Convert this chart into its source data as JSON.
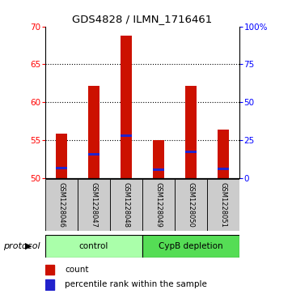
{
  "title": "GDS4828 / ILMN_1716461",
  "samples": [
    "GSM1228046",
    "GSM1228047",
    "GSM1228048",
    "GSM1228049",
    "GSM1228050",
    "GSM1228051"
  ],
  "bar_bottom": 50,
  "bar_tops": [
    55.8,
    62.2,
    68.8,
    55.0,
    62.2,
    56.4
  ],
  "percentile_values": [
    51.3,
    53.1,
    55.6,
    51.1,
    53.4,
    51.2
  ],
  "groups": [
    {
      "label": "control",
      "start": 0,
      "end": 3,
      "color": "#aaffaa"
    },
    {
      "label": "CypB depletion",
      "start": 3,
      "end": 6,
      "color": "#55dd55"
    }
  ],
  "bar_color": "#cc1100",
  "percentile_color": "#2222cc",
  "ylim_left": [
    50,
    70
  ],
  "ylim_right": [
    0,
    100
  ],
  "yticks_left": [
    50,
    55,
    60,
    65,
    70
  ],
  "yticks_right": [
    0,
    25,
    50,
    75,
    100
  ],
  "ytick_labels_right": [
    "0",
    "25",
    "50",
    "75",
    "100%"
  ],
  "gridlines_at": [
    55,
    60,
    65
  ],
  "legend_count_label": "count",
  "legend_percentile_label": "percentile rank within the sample",
  "protocol_label": "protocol",
  "bar_width": 0.35,
  "figure_bg": "#ffffff",
  "plot_bg": "#ffffff",
  "label_panel_bg": "#cccccc",
  "spine_color": "#888888"
}
